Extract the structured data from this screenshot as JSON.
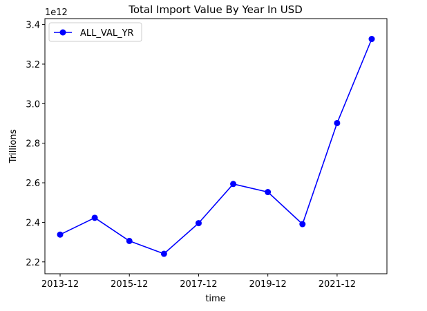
{
  "chart_data": {
    "type": "line",
    "title": "Total Import Value By Year In USD",
    "xlabel": "time",
    "ylabel": "Trillions",
    "y_offset_label": "1e12",
    "y_scale_factor": 1000000000000.0,
    "x": [
      "2013-12",
      "2014-12",
      "2015-12",
      "2016-12",
      "2017-12",
      "2018-12",
      "2019-12",
      "2020-12",
      "2021-12",
      "2022-12"
    ],
    "x_tick_labels": [
      "2013-12",
      "2015-12",
      "2017-12",
      "2019-12",
      "2021-12"
    ],
    "ylim": [
      2.14,
      3.43
    ],
    "y_ticks": [
      2.2,
      2.4,
      2.6,
      2.8,
      3.0,
      3.2,
      3.4
    ],
    "y_tick_labels": [
      "2.2",
      "2.4",
      "2.6",
      "2.8",
      "3.0",
      "3.2",
      "3.4"
    ],
    "series": [
      {
        "name": "ALL_VAL_YR",
        "color": "#0000ff",
        "marker": "circle",
        "values": [
          2.338,
          2.423,
          2.306,
          2.241,
          2.396,
          2.594,
          2.553,
          2.391,
          2.902,
          3.327
        ]
      }
    ],
    "legend_position": "top-left",
    "grid": false
  }
}
